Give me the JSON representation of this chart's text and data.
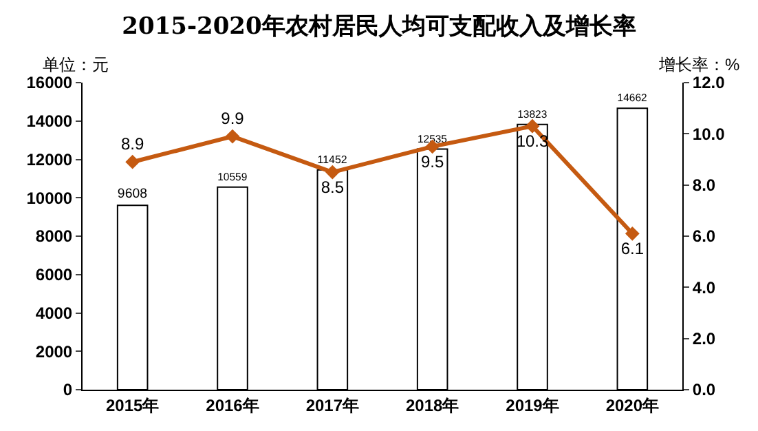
{
  "chart_data": {
    "type": "bar",
    "title": "2015-2020年农村居民人均可支配收入及增长率",
    "ylabel": "单位：元",
    "y2label": "增长率：%",
    "categories": [
      "2015年",
      "2016年",
      "2017年",
      "2018年",
      "2019年",
      "2020年"
    ],
    "series": [
      {
        "color": "#ffffff",
        "values": [
          9608,
          10559,
          11452,
          12535,
          13823,
          14662
        ]
      },
      {
        "type": "line",
        "axis": "y2",
        "color": "#c55a11",
        "marker": "diamond",
        "values": [
          8.9,
          9.9,
          8.5,
          9.5,
          10.3,
          6.1
        ]
      }
    ],
    "ylim": [
      0,
      16000
    ],
    "yticks": [
      0,
      2000,
      4000,
      6000,
      8000,
      10000,
      12000,
      14000,
      16000
    ],
    "y2lim": [
      0,
      12
    ],
    "y2ticks": [
      {
        "value": 0,
        "label": "0.0"
      },
      {
        "value": 2,
        "label": "2.0"
      },
      {
        "value": 4,
        "label": "4.0"
      },
      {
        "value": 6,
        "label": "6.0"
      },
      {
        "value": 8,
        "label": "8.0"
      },
      {
        "value": 10,
        "label": "10.0"
      },
      {
        "value": 12,
        "label": "12.0"
      }
    ],
    "data_labels": true,
    "grid": false,
    "legend": false
  }
}
